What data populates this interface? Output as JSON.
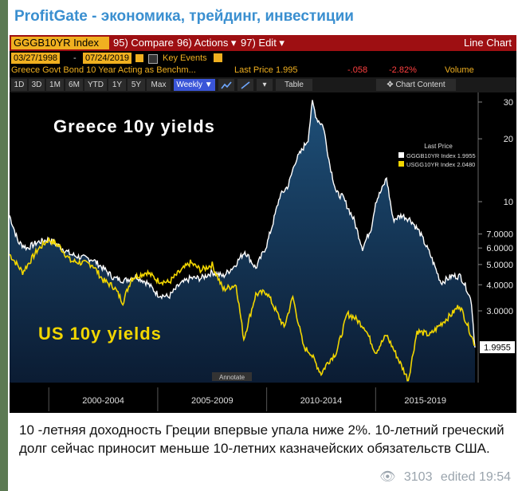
{
  "channel": {
    "title": "ProfitGate - экономика, трейдинг, инвестиции"
  },
  "terminal": {
    "ticker": "GGGB10YR Index",
    "compare": "95) Compare",
    "actions": "96) Actions ▾",
    "edit": "97) Edit ▾",
    "chart_type": "Line Chart",
    "start_date": "03/27/1998",
    "end_date": "07/24/2019",
    "date_sep": "-",
    "key_events": "Key Events",
    "security_desc": "Greece Govt Bond 10 Year Acting as Benchm...",
    "last_price_label": "Last Price 1.995",
    "change": "-.058",
    "pct_change": "-2.82%",
    "volume_label": "Volume",
    "periods": [
      "1D",
      "3D",
      "1M",
      "6M",
      "YTD",
      "1Y",
      "5Y",
      "Max"
    ],
    "frequency": "Weekly ▼",
    "table_label": "Table",
    "chart_content": "Chart Content",
    "annotate": "Annotate"
  },
  "chart_data": {
    "type": "line",
    "title": "",
    "overlay_labels": {
      "greece": "Greece 10y yields",
      "us": "US 10y yields"
    },
    "legend": {
      "header": "Last Price",
      "entries": [
        {
          "name": "GGGB10YR Index 1.9955",
          "color": "#ffffff"
        },
        {
          "name": "USGG10YR Index 2.0480",
          "color": "#f2d600"
        }
      ]
    },
    "x_labels": [
      "2000-2004",
      "2005-2009",
      "2010-2014",
      "2015-2019"
    ],
    "y_scale": "log",
    "y_ticks": [
      "30",
      "20",
      "10",
      "7.0000",
      "6.0000",
      "5.0000",
      "4.0000",
      "3.0000"
    ],
    "last_value_label": "1.9955",
    "series": [
      {
        "name": "GGGB10YR Index",
        "color": "#ffffff",
        "t": [
          1998.2,
          1998.6,
          1999.0,
          1999.5,
          2000.0,
          2000.5,
          2001.0,
          2001.5,
          2002.0,
          2002.5,
          2003.0,
          2003.5,
          2004.0,
          2004.5,
          2005.0,
          2005.5,
          2006.0,
          2006.5,
          2007.0,
          2007.5,
          2008.0,
          2008.5,
          2009.0,
          2009.5,
          2010.0,
          2010.3,
          2010.6,
          2011.0,
          2011.3,
          2011.6,
          2011.9,
          2012.1,
          2012.3,
          2012.6,
          2012.9,
          2013.2,
          2013.5,
          2014.0,
          2014.4,
          2014.8,
          2015.0,
          2015.3,
          2015.5,
          2015.8,
          2016.2,
          2016.6,
          2017.0,
          2017.5,
          2018.0,
          2018.5,
          2018.9,
          2019.2,
          2019.4,
          2019.56
        ],
        "values": [
          8.6,
          6.4,
          6.0,
          6.4,
          6.6,
          6.1,
          5.6,
          5.4,
          5.3,
          4.8,
          4.3,
          4.2,
          4.4,
          4.1,
          3.6,
          3.5,
          4.0,
          4.3,
          4.3,
          4.6,
          4.4,
          4.9,
          5.8,
          4.8,
          6.2,
          8.0,
          10.6,
          12.0,
          15.5,
          17.5,
          20.0,
          30.0,
          25.0,
          23.0,
          15.0,
          11.0,
          10.5,
          8.2,
          6.0,
          7.5,
          10.0,
          11.5,
          13.0,
          8.2,
          8.6,
          8.2,
          7.2,
          5.6,
          4.1,
          4.4,
          4.4,
          3.8,
          3.3,
          2.0
        ]
      },
      {
        "name": "USGG10YR Index",
        "color": "#f2d600",
        "t": [
          1998.2,
          1998.8,
          1999.5,
          2000.0,
          2000.5,
          2001.0,
          2001.5,
          2002.0,
          2002.5,
          2003.0,
          2003.4,
          2003.8,
          2004.5,
          2005.0,
          2005.5,
          2006.0,
          2006.5,
          2007.0,
          2007.5,
          2008.0,
          2008.6,
          2008.95,
          2009.5,
          2010.0,
          2010.5,
          2010.8,
          2011.2,
          2011.7,
          2012.0,
          2012.5,
          2012.8,
          2013.2,
          2013.7,
          2014.0,
          2014.5,
          2015.0,
          2015.5,
          2016.0,
          2016.5,
          2016.9,
          2017.5,
          2018.0,
          2018.5,
          2018.85,
          2019.2,
          2019.56
        ],
        "values": [
          5.6,
          4.6,
          5.9,
          6.6,
          6.1,
          5.2,
          5.1,
          5.0,
          4.2,
          3.9,
          3.3,
          4.3,
          4.6,
          4.2,
          4.1,
          4.6,
          5.1,
          4.7,
          5.0,
          3.8,
          4.0,
          2.2,
          3.6,
          3.7,
          2.9,
          2.5,
          3.5,
          2.0,
          1.9,
          1.5,
          1.7,
          1.9,
          2.9,
          2.8,
          2.5,
          1.9,
          2.3,
          1.8,
          1.4,
          2.4,
          2.3,
          2.6,
          2.9,
          3.2,
          2.6,
          2.05
        ]
      }
    ]
  },
  "caption": {
    "text": "10 -летняя доходность Греции впервые упала ниже 2%. 10-летний греческий долг сейчас приносит меньше 10-летних казначейских обязательств США."
  },
  "meta": {
    "views": "3103",
    "edited": "edited 19:54"
  }
}
